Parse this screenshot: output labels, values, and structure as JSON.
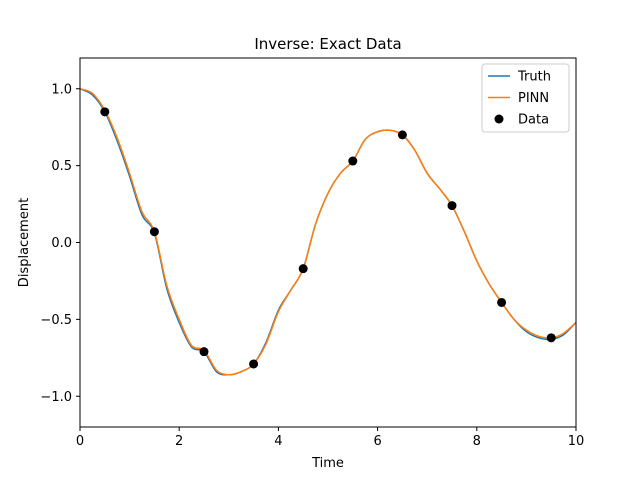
{
  "chart_data": {
    "type": "line",
    "title": "Inverse: Exact Data",
    "xlabel": "Time",
    "ylabel": "Displacement",
    "xlim": [
      0,
      10
    ],
    "ylim": [
      -1.2,
      1.2
    ],
    "xticks": [
      0,
      2,
      4,
      6,
      8,
      10
    ],
    "xtick_labels": [
      "0",
      "2",
      "4",
      "6",
      "8",
      "10"
    ],
    "yticks": [
      -1.0,
      -0.5,
      0.0,
      0.5,
      1.0
    ],
    "ytick_labels": [
      "−1.0",
      "−0.5",
      "0.0",
      "0.5",
      "1.0"
    ],
    "grid": false,
    "legend_position": "top-right",
    "series": [
      {
        "name": "Truth",
        "kind": "line",
        "color": "#1f77b4",
        "x": [
          0,
          0.25,
          0.5,
          0.75,
          1.0,
          1.25,
          1.5,
          1.75,
          2.0,
          2.25,
          2.5,
          2.75,
          3.0,
          3.25,
          3.5,
          3.75,
          4.0,
          4.25,
          4.5,
          4.75,
          5.0,
          5.25,
          5.5,
          5.75,
          6.0,
          6.25,
          6.5,
          6.75,
          7.0,
          7.25,
          7.5,
          7.75,
          8.0,
          8.25,
          8.5,
          8.75,
          9.0,
          9.25,
          9.5,
          9.75,
          10.0
        ],
        "y": [
          1.0,
          0.96,
          0.85,
          0.66,
          0.43,
          0.18,
          0.06,
          -0.3,
          -0.52,
          -0.68,
          -0.71,
          -0.84,
          -0.86,
          -0.84,
          -0.79,
          -0.65,
          -0.44,
          -0.31,
          -0.17,
          0.12,
          0.32,
          0.45,
          0.53,
          0.67,
          0.72,
          0.73,
          0.7,
          0.6,
          0.45,
          0.35,
          0.24,
          0.07,
          -0.12,
          -0.27,
          -0.39,
          -0.5,
          -0.58,
          -0.62,
          -0.63,
          -0.6,
          -0.52
        ]
      },
      {
        "name": "PINN",
        "kind": "line",
        "color": "#ff7f0e",
        "x": [
          0,
          0.25,
          0.5,
          0.75,
          1.0,
          1.25,
          1.5,
          1.75,
          2.0,
          2.25,
          2.5,
          2.75,
          3.0,
          3.25,
          3.5,
          3.75,
          4.0,
          4.25,
          4.5,
          4.75,
          5.0,
          5.25,
          5.5,
          5.75,
          6.0,
          6.25,
          6.5,
          6.75,
          7.0,
          7.25,
          7.5,
          7.75,
          8.0,
          8.25,
          8.5,
          8.75,
          9.0,
          9.25,
          9.5,
          9.75,
          10.0
        ],
        "y": [
          1.0,
          0.97,
          0.86,
          0.68,
          0.45,
          0.2,
          0.07,
          -0.28,
          -0.5,
          -0.67,
          -0.7,
          -0.83,
          -0.86,
          -0.84,
          -0.79,
          -0.66,
          -0.45,
          -0.31,
          -0.17,
          0.12,
          0.32,
          0.45,
          0.53,
          0.67,
          0.72,
          0.73,
          0.7,
          0.6,
          0.45,
          0.35,
          0.24,
          0.07,
          -0.12,
          -0.27,
          -0.39,
          -0.5,
          -0.57,
          -0.61,
          -0.62,
          -0.59,
          -0.52
        ]
      },
      {
        "name": "Data",
        "kind": "scatter",
        "color": "#000000",
        "x": [
          0.5,
          1.5,
          2.5,
          3.5,
          4.5,
          5.5,
          6.5,
          7.5,
          8.5,
          9.5
        ],
        "y": [
          0.85,
          0.07,
          -0.71,
          -0.79,
          -0.17,
          0.53,
          0.7,
          0.24,
          -0.39,
          -0.62
        ]
      }
    ]
  }
}
